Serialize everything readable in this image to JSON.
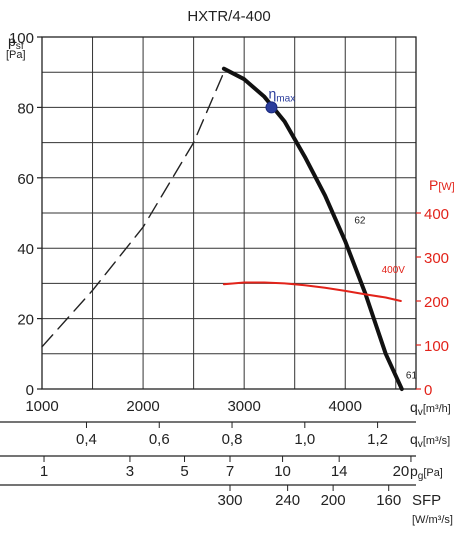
{
  "chart_data": {
    "type": "line",
    "title": "HXTR/4-400",
    "y_left": {
      "label_main": "p",
      "label_sub": "sf",
      "unit": "[Pa]",
      "ticks": [
        0,
        20,
        40,
        60,
        80,
        100
      ],
      "range": [
        0,
        100
      ]
    },
    "y_right": {
      "label": "P",
      "unit": "[W]",
      "ticks": [
        0,
        100,
        200,
        300,
        400
      ],
      "range": [
        0,
        400
      ],
      "color": "#e2231a"
    },
    "x_primary": {
      "label": "q",
      "label_sub": "v",
      "unit": "[m³/h]",
      "ticks": [
        1000,
        2000,
        3000,
        4000
      ],
      "range": [
        1000,
        4700
      ]
    },
    "x_scales": [
      {
        "label": "q",
        "label_sub": "v",
        "unit": "[m³/s]",
        "ticks": [
          {
            "v": 0.4,
            "t": "0,4"
          },
          {
            "v": 0.6,
            "t": "0,6"
          },
          {
            "v": 0.8,
            "t": "0,8"
          },
          {
            "v": 1.0,
            "t": "1,0"
          },
          {
            "v": 1.2,
            "t": "1,2"
          }
        ]
      },
      {
        "label": "p",
        "label_sub": "g",
        "unit": "[Pa]",
        "ticks": [
          {
            "q": 1020,
            "t": "1"
          },
          {
            "q": 1870,
            "t": "3"
          },
          {
            "q": 2410,
            "t": "5"
          },
          {
            "q": 2860,
            "t": "7"
          },
          {
            "q": 3380,
            "t": "10"
          },
          {
            "q": 3940,
            "t": "14"
          },
          {
            "q": 4650,
            "t": "20"
          }
        ]
      },
      {
        "label": "SFP",
        "unit": "[W/m³/s]",
        "ticks": [
          {
            "q": 2860,
            "t": "300"
          },
          {
            "q": 3430,
            "t": "240"
          },
          {
            "q": 3880,
            "t": "200"
          },
          {
            "q": 4430,
            "t": "160"
          }
        ]
      }
    ],
    "series": [
      {
        "kind": "fan_curve_unstable",
        "style": "dashed",
        "color": "#222222",
        "points": [
          [
            1000,
            12
          ],
          [
            1500,
            28
          ],
          [
            2000,
            46
          ],
          [
            2500,
            70
          ],
          [
            2800,
            90
          ]
        ]
      },
      {
        "name": "62",
        "kind": "fan_curve",
        "style": "solid",
        "color": "#111111",
        "points": [
          [
            2800,
            91
          ],
          [
            3000,
            88
          ],
          [
            3200,
            83
          ],
          [
            3400,
            76
          ],
          [
            3600,
            66
          ],
          [
            3800,
            55
          ],
          [
            4000,
            42
          ],
          [
            4200,
            27
          ],
          [
            4400,
            10
          ],
          [
            4560,
            0
          ]
        ]
      },
      {
        "name": "400V",
        "kind": "power",
        "style": "solid",
        "color": "#e2231a",
        "axis": "right",
        "points": [
          [
            2800,
            238
          ],
          [
            3000,
            242
          ],
          [
            3200,
            242
          ],
          [
            3400,
            240
          ],
          [
            3600,
            236
          ],
          [
            3800,
            230
          ],
          [
            4000,
            223
          ],
          [
            4200,
            215
          ],
          [
            4400,
            208
          ],
          [
            4550,
            200
          ]
        ]
      }
    ],
    "annotations": [
      {
        "text": "η",
        "sub": "max",
        "q": 3270,
        "p": 80,
        "kind": "marker",
        "color": "#2b3d9c"
      },
      {
        "text": "62",
        "q": 4090,
        "p": 47,
        "kind": "curve_label"
      },
      {
        "text": "400V",
        "q": 4360,
        "p": 33,
        "kind": "curve_label",
        "color": "#e2231a"
      },
      {
        "text": "61",
        "q": 4600,
        "p": 3,
        "kind": "curve_label"
      }
    ],
    "grid": true
  }
}
